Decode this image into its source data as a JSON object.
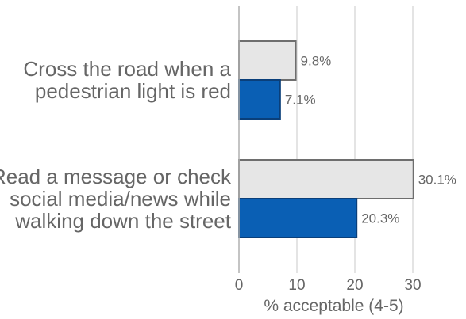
{
  "chart_data": {
    "type": "bar",
    "orientation": "horizontal",
    "categories": [
      [
        "Cross the road when a",
        "pedestrian light is red"
      ],
      [
        "Read a message or check",
        "social media/news while",
        "walking down the street"
      ]
    ],
    "series": [
      {
        "values": [
          9.8,
          30.1
        ],
        "labels": [
          "9.8%",
          "30.1%"
        ],
        "color": "#e6e6e6",
        "stroke": "#6e6e6e"
      },
      {
        "values": [
          7.1,
          20.3
        ],
        "labels": [
          "7.1%",
          "20.3%"
        ],
        "color": "#0a5fb4",
        "stroke": "#0a3f7a"
      }
    ],
    "xlim": [
      0,
      30
    ],
    "xticks": [
      0,
      10,
      20,
      30
    ],
    "xticklabels": [
      "0",
      "10",
      "20",
      "30"
    ],
    "xlabel": "% acceptable (4-5)",
    "ylabel": "",
    "title": "",
    "grid": true,
    "legend": "none"
  }
}
